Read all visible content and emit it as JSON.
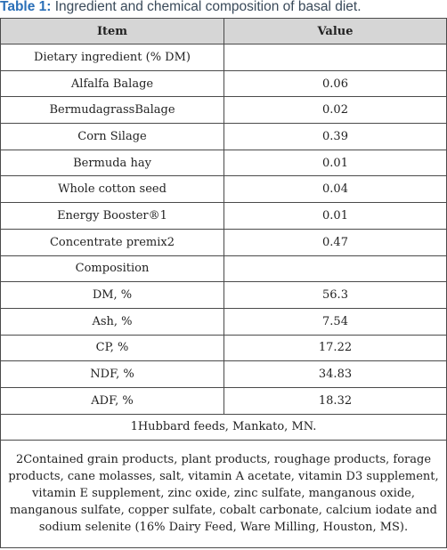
{
  "caption": {
    "label": "Table 1:",
    "text": " Ingredient and chemical composition of basal diet."
  },
  "headers": {
    "item": "Item",
    "value": "Value"
  },
  "rows": [
    {
      "item": "Dietary ingredient (% DM)",
      "value": ""
    },
    {
      "item": "Alfalfa Balage",
      "value": "0.06"
    },
    {
      "item": "BermudagrassBalage",
      "value": "0.02"
    },
    {
      "item": "Corn Silage",
      "value": "0.39"
    },
    {
      "item": "Bermuda hay",
      "value": "0.01"
    },
    {
      "item": "Whole cotton seed",
      "value": "0.04"
    },
    {
      "item": "Energy Booster®1",
      "value": "0.01"
    },
    {
      "item": "Concentrate premix2",
      "value": "0.47"
    },
    {
      "item": "Composition",
      "value": ""
    },
    {
      "item": "DM, %",
      "value": "56.3"
    },
    {
      "item": "Ash, %",
      "value": "7.54"
    },
    {
      "item": "CP, %",
      "value": "17.22"
    },
    {
      "item": "NDF, %",
      "value": "34.83"
    },
    {
      "item": "ADF, %",
      "value": "18.32"
    }
  ],
  "footnotes": [
    "1Hubbard feeds, Mankato, MN.",
    "2Contained grain products, plant products, roughage products, forage products, cane molasses, salt, vitamin A acetate, vitamin D3 supplement, vitamin E supplement, zinc oxide, zinc sulfate, manganous oxide, manganous sulfate, copper sulfate, cobalt carbonate, calcium iodate and sodium selenite (16% Dairy Feed, Ware Milling, Houston, MS)."
  ]
}
